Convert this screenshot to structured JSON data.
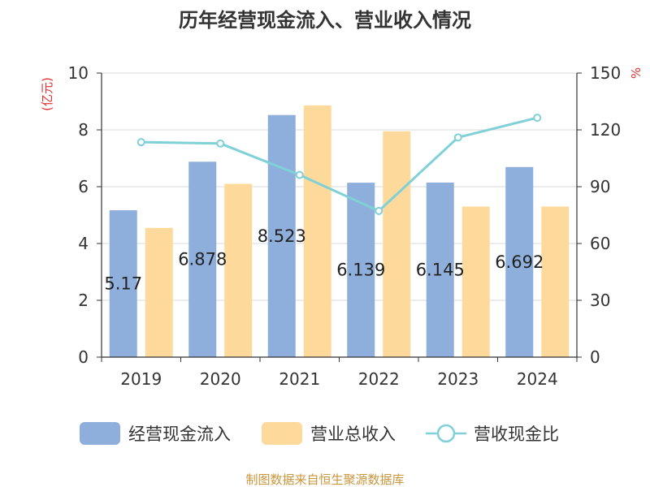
{
  "chart_data": {
    "type": "bar",
    "title": "历年经营现金流入、营业收入情况",
    "categories": [
      "2019",
      "2020",
      "2021",
      "2022",
      "2023",
      "2024"
    ],
    "series": [
      {
        "name": "经营现金流入",
        "type": "bar",
        "axis": "left",
        "color": "#8eaedb",
        "values": [
          5.17,
          6.878,
          8.523,
          6.139,
          6.145,
          6.692
        ],
        "labels": [
          "5.17",
          "6.878",
          "8.523",
          "6.139",
          "6.145",
          "6.692"
        ]
      },
      {
        "name": "营业总收入",
        "type": "bar",
        "axis": "left",
        "color": "#fdd99b",
        "values": [
          4.55,
          6.1,
          8.86,
          7.95,
          5.3,
          5.3
        ]
      },
      {
        "name": "营收现金比",
        "type": "line",
        "axis": "right",
        "color": "#80d0d8",
        "values": [
          113.5,
          112.8,
          96.2,
          77.2,
          116.0,
          126.4
        ]
      }
    ],
    "y_left": {
      "label": "(亿元)",
      "lim": [
        0,
        10
      ],
      "ticks": [
        "0",
        "2",
        "4",
        "6",
        "8",
        "10"
      ]
    },
    "y_right": {
      "label": "%",
      "lim": [
        0,
        150
      ],
      "ticks": [
        "0",
        "30",
        "60",
        "90",
        "120",
        "150"
      ]
    },
    "grid": true,
    "legend": "bottom",
    "source": "制图数据来自恒生聚源数据库"
  }
}
